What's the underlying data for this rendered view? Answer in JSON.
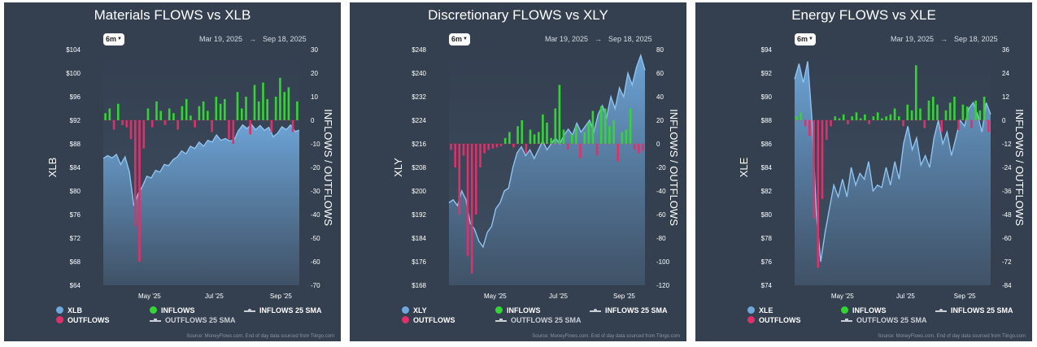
{
  "chart_data": [
    {
      "type": "bar+area",
      "title": "Materials FLOWS vs XLB",
      "range_button": "6m",
      "date_start": "Mar 19, 2025",
      "date_end": "Sep 18, 2025",
      "ylabel_left": "XLB",
      "ylabel_right": "INFLOWS / OUTFLOWS",
      "left_ticks": [
        "$104",
        "$100",
        "$96",
        "$92",
        "$88",
        "$84",
        "$80",
        "$76",
        "$72",
        "$68",
        "$64"
      ],
      "left_range": [
        64,
        104
      ],
      "right_ticks": [
        "30",
        "20",
        "10",
        "0",
        "-10",
        "-20",
        "-30",
        "-40",
        "-50",
        "-60",
        "-70"
      ],
      "right_range": [
        -70,
        30
      ],
      "x_ticks": [
        "May '25",
        "Jul '25",
        "Sep '25"
      ],
      "x_tick_pos": [
        0.236,
        0.566,
        0.906
      ],
      "price_series_name": "XLB",
      "price": [
        85.5,
        86,
        85.6,
        86.2,
        84.5,
        85.8,
        83.2,
        77.5,
        79.5,
        80.8,
        82.5,
        82.2,
        83.5,
        83.2,
        84.5,
        84.3,
        85.3,
        85.8,
        86.8,
        86.3,
        87.6,
        87.2,
        88.3,
        87.6,
        88.6,
        88.3,
        89.5,
        88.6,
        88.9,
        88.5,
        88.6,
        90.2,
        91.2,
        90.6,
        91.3,
        90.4,
        91.1,
        90.3,
        90.8,
        89.2,
        89.8,
        90.9,
        90.4,
        91.2,
        90.1,
        90.3
      ],
      "flows": [
        3,
        5,
        -4,
        7,
        -2,
        -3,
        -8,
        -45,
        -60,
        -12,
        5,
        -3,
        8,
        4,
        -2,
        5,
        3,
        -4,
        6,
        9,
        2,
        -3,
        6,
        8,
        4,
        -5,
        10,
        7,
        9,
        -8,
        -10,
        12,
        5,
        10,
        -6,
        15,
        8,
        16,
        9,
        -5,
        10,
        18,
        12,
        14,
        -5,
        8
      ]
    },
    {
      "type": "bar+area",
      "title": "Discretionary FLOWS vs XLY",
      "range_button": "6m",
      "date_start": "Mar 19, 2025",
      "date_end": "Sep 18, 2025",
      "ylabel_left": "XLY",
      "ylabel_right": "INFLOWS / OUTFLOWS",
      "left_ticks": [
        "$248",
        "$240",
        "$232",
        "$224",
        "$216",
        "$208",
        "$200",
        "$192",
        "$184",
        "$176",
        "$168"
      ],
      "left_range": [
        168,
        248
      ],
      "right_ticks": [
        "80",
        "60",
        "40",
        "20",
        "0",
        "-20",
        "-40",
        "-60",
        "-80",
        "-100",
        "-120"
      ],
      "right_range": [
        -120,
        80
      ],
      "x_ticks": [
        "May '25",
        "Jul '25",
        "Sep '25"
      ],
      "x_tick_pos": [
        0.236,
        0.558,
        0.894
      ],
      "price_series_name": "XLY",
      "price": [
        196,
        197,
        195,
        200,
        197,
        189,
        187,
        183,
        181,
        186,
        188,
        194,
        196,
        200,
        201,
        208,
        213,
        215,
        212,
        214,
        211,
        214,
        217,
        214,
        216,
        218,
        216,
        219,
        221,
        219,
        223,
        220,
        222,
        224,
        220,
        226,
        229,
        225,
        232,
        228,
        235,
        232,
        240,
        236,
        242,
        246,
        241
      ],
      "flows": [
        -5,
        -20,
        -60,
        -10,
        -95,
        -110,
        -60,
        -20,
        -8,
        -5,
        -4,
        -3,
        -2,
        5,
        10,
        -3,
        15,
        20,
        -8,
        12,
        8,
        10,
        25,
        18,
        5,
        30,
        50,
        12,
        -5,
        8,
        15,
        -12,
        10,
        18,
        28,
        -10,
        32,
        30,
        15,
        20,
        -15,
        10,
        12,
        30,
        -5,
        -8,
        -6
      ]
    },
    {
      "type": "bar+area",
      "title": "Energy FLOWS vs XLE",
      "range_button": "6m",
      "date_start": "Mar 19, 2025",
      "date_end": "Sep 18, 2025",
      "ylabel_left": "XLE",
      "ylabel_right": "INFLOWS / OUTFLOWS",
      "left_ticks": [
        "$94",
        "$92",
        "$90",
        "$88",
        "$86",
        "$84",
        "$82",
        "$80",
        "$78",
        "$76",
        "$74"
      ],
      "left_range": [
        74,
        94
      ],
      "right_ticks": [
        "36",
        "24",
        "12",
        "0",
        "-12",
        "-24",
        "-36",
        "-48",
        "-60",
        "-72",
        "-84"
      ],
      "right_range": [
        -84,
        36
      ],
      "x_ticks": [
        "May '25",
        "Jul '25",
        "Sep '25"
      ],
      "x_tick_pos": [
        0.244,
        0.566,
        0.868
      ],
      "price_series_name": "XLE",
      "price": [
        91.5,
        92.8,
        91.2,
        93.0,
        88.0,
        80.0,
        76.0,
        78.5,
        80.5,
        82.5,
        81.5,
        83.0,
        81.5,
        84.0,
        82.5,
        83.5,
        83.0,
        84.5,
        82.0,
        82.5,
        82.3,
        84.0,
        82.5,
        84.5,
        83.0,
        86.0,
        87.5,
        85.5,
        86.5,
        84.2,
        85.0,
        84.0,
        86.5,
        88.0,
        86.0,
        87.0,
        85.0,
        86.5,
        88.0,
        87.5,
        89.0,
        89.5,
        88.5,
        87.0,
        89.5,
        88.5
      ],
      "flows": [
        2,
        4,
        -3,
        -8,
        -50,
        -75,
        -40,
        -10,
        -3,
        2,
        1,
        3,
        -2,
        2,
        4,
        1,
        3,
        -2,
        2,
        4,
        1,
        2,
        3,
        6,
        2,
        -3,
        8,
        5,
        28,
        6,
        -4,
        10,
        12,
        8,
        -6,
        5,
        9,
        12,
        -5,
        8,
        7,
        -4,
        10,
        5,
        12,
        -6
      ]
    }
  ],
  "legend": {
    "price_label_1": "XLB",
    "price_label_2": "XLY",
    "price_label_3": "XLE",
    "inflows": "INFLOWS",
    "outflows": "OUTFLOWS",
    "inflows_sma": "INFLOWS 25 SMA",
    "outflows_sma": "OUTFLOWS 25 SMA"
  },
  "source": "Source: MoneyFlows.com. End of day data sourced from Tiingo.com",
  "colors": {
    "panel_bg": "#344050",
    "price_fill": "#6fa8dc",
    "price_line": "#8fc3ef",
    "inflows": "#35d435",
    "outflows": "#e0306a"
  }
}
